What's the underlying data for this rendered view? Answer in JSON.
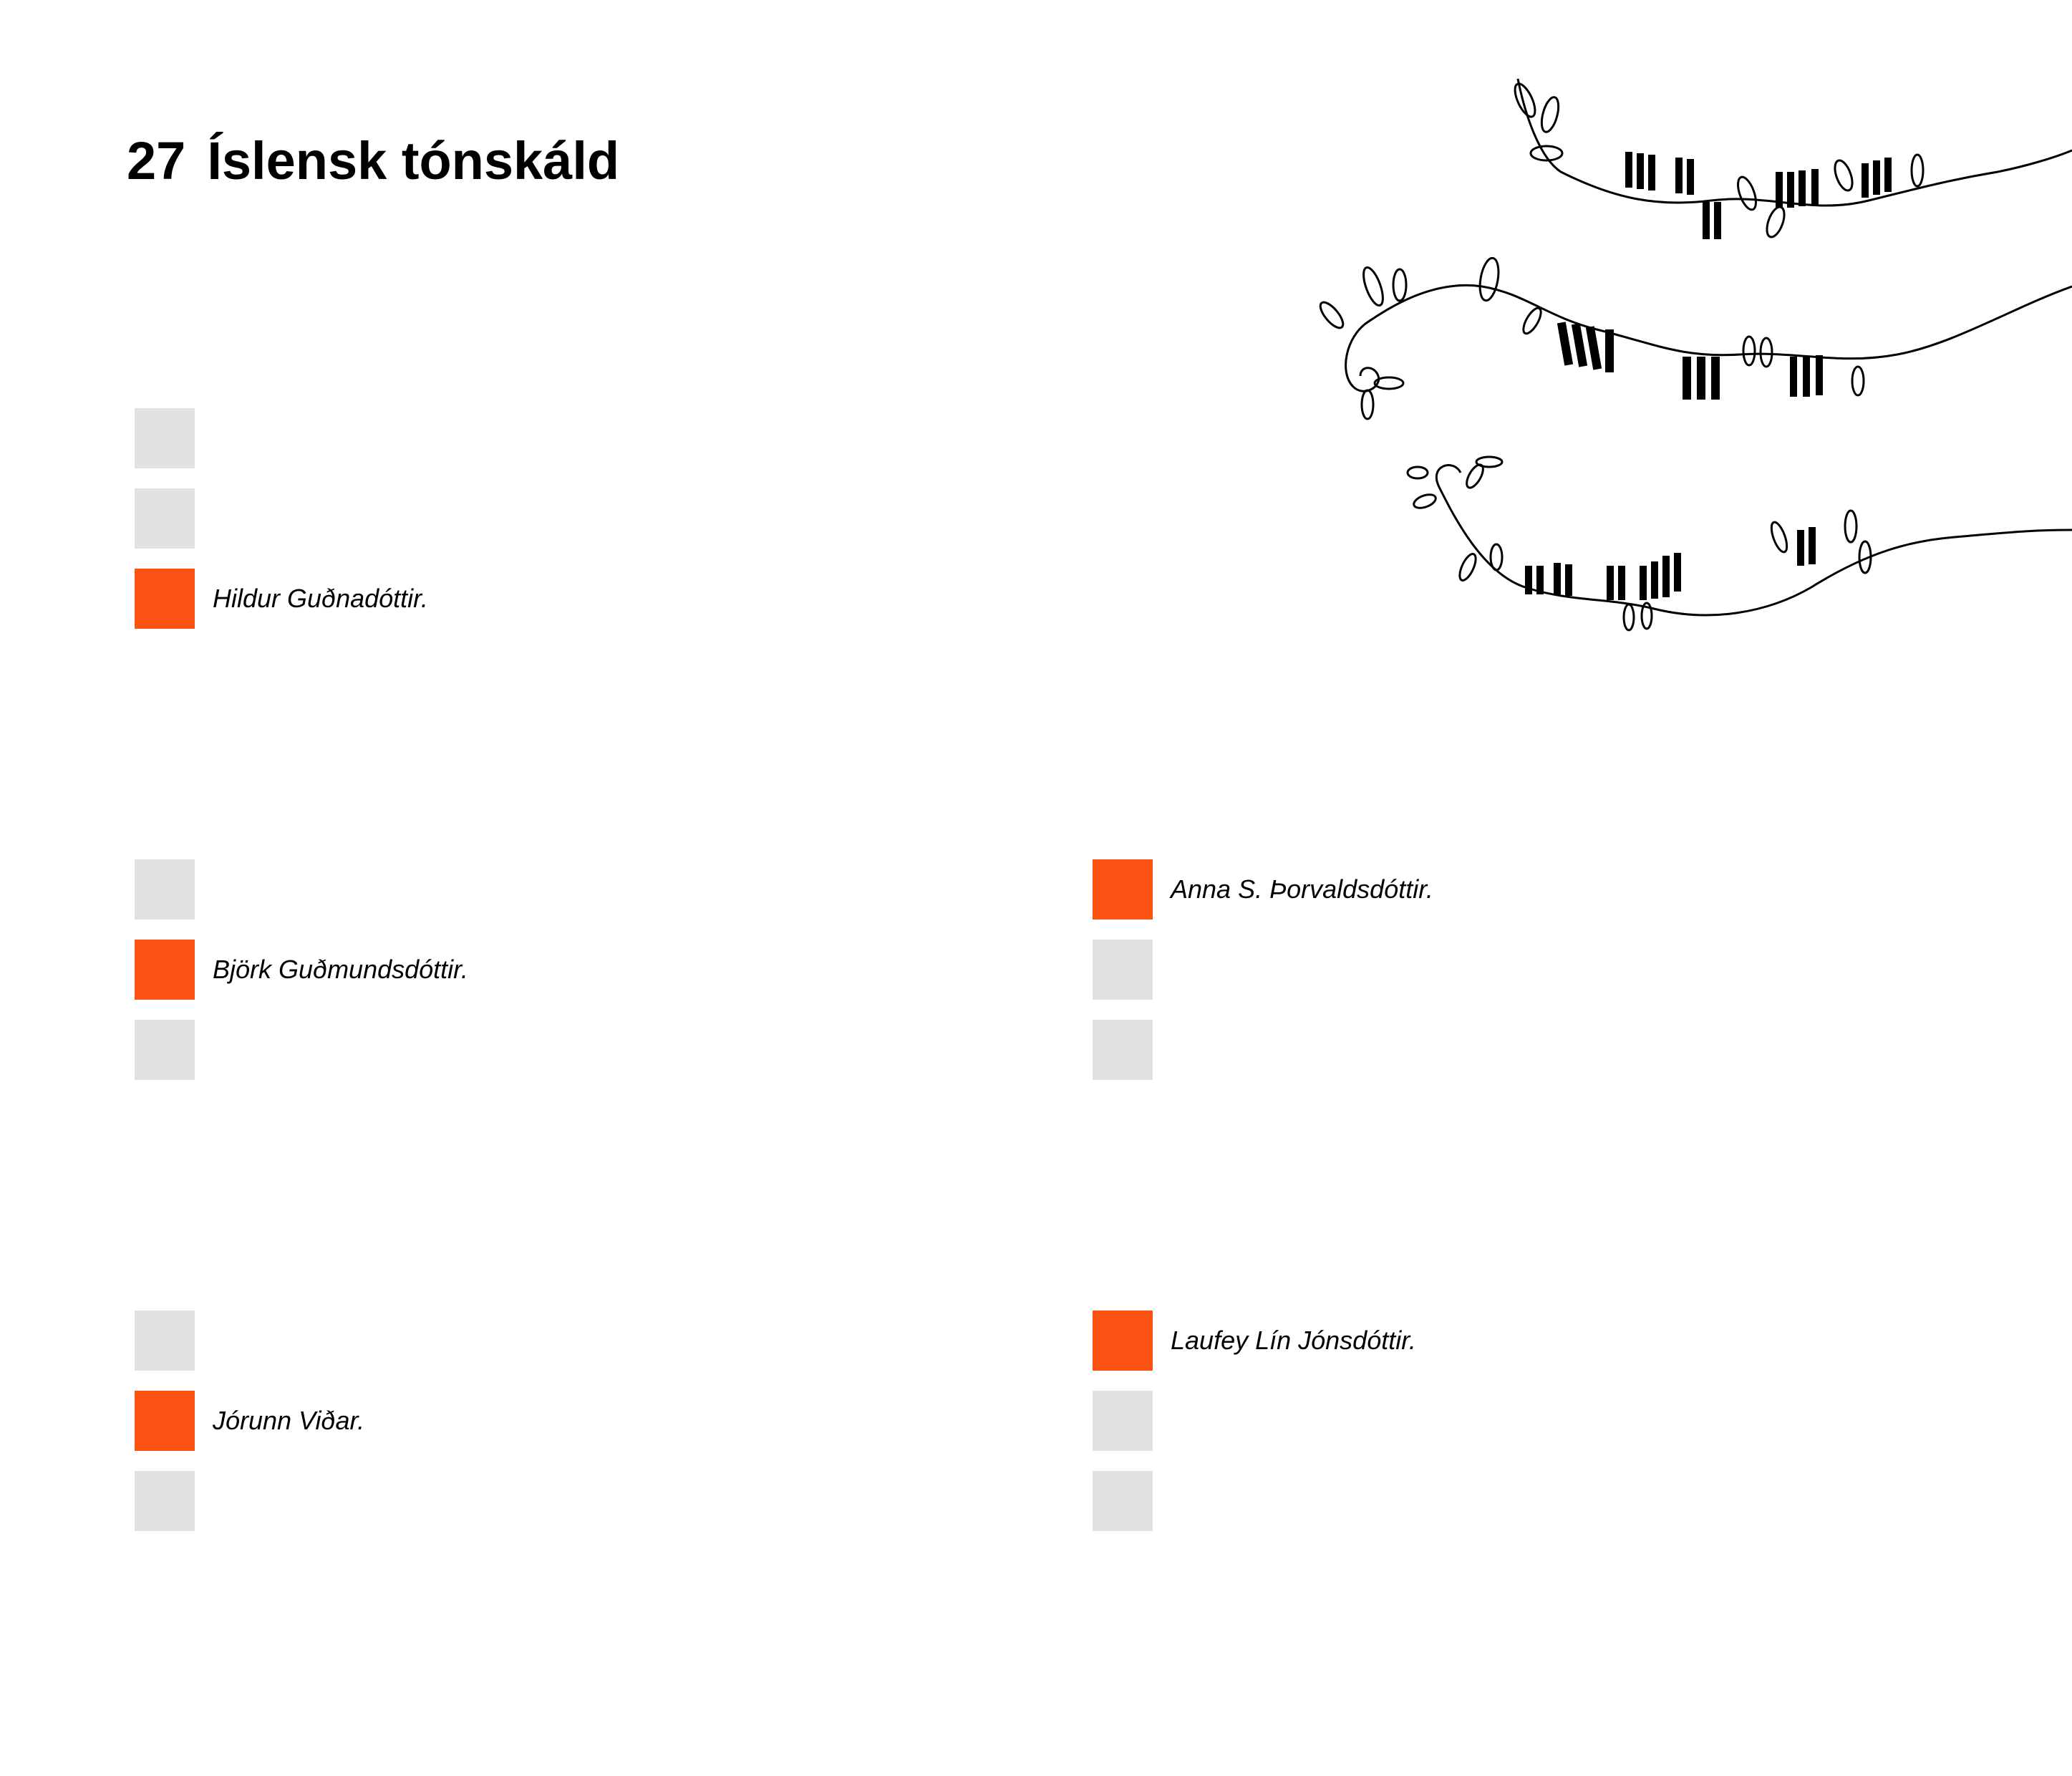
{
  "question": {
    "number": "27",
    "title": "Íslensk tónskáld"
  },
  "colors": {
    "selected": "#fc5214",
    "unselected": "#e1e1e1"
  },
  "illustration": {
    "icon": "piano-keys-vines-illustration"
  },
  "groups": [
    {
      "options": [
        {
          "label": "",
          "selected": false
        },
        {
          "label": "",
          "selected": false
        },
        {
          "label": "Hildur Guðnadóttir.",
          "selected": true
        }
      ]
    },
    {
      "options": [
        {
          "label": "",
          "selected": false
        },
        {
          "label": "Björk Guðmundsdóttir.",
          "selected": true
        },
        {
          "label": "",
          "selected": false
        }
      ]
    },
    {
      "options": [
        {
          "label": "",
          "selected": false
        },
        {
          "label": "Jórunn Viðar.",
          "selected": true
        },
        {
          "label": "",
          "selected": false
        }
      ]
    },
    {
      "options": [
        {
          "label": "Anna S. Þorvaldsdóttir.",
          "selected": true
        },
        {
          "label": "",
          "selected": false
        },
        {
          "label": "",
          "selected": false
        }
      ]
    },
    {
      "options": [
        {
          "label": "Laufey Lín Jónsdóttir.",
          "selected": true
        },
        {
          "label": "",
          "selected": false
        },
        {
          "label": "",
          "selected": false
        }
      ]
    }
  ]
}
